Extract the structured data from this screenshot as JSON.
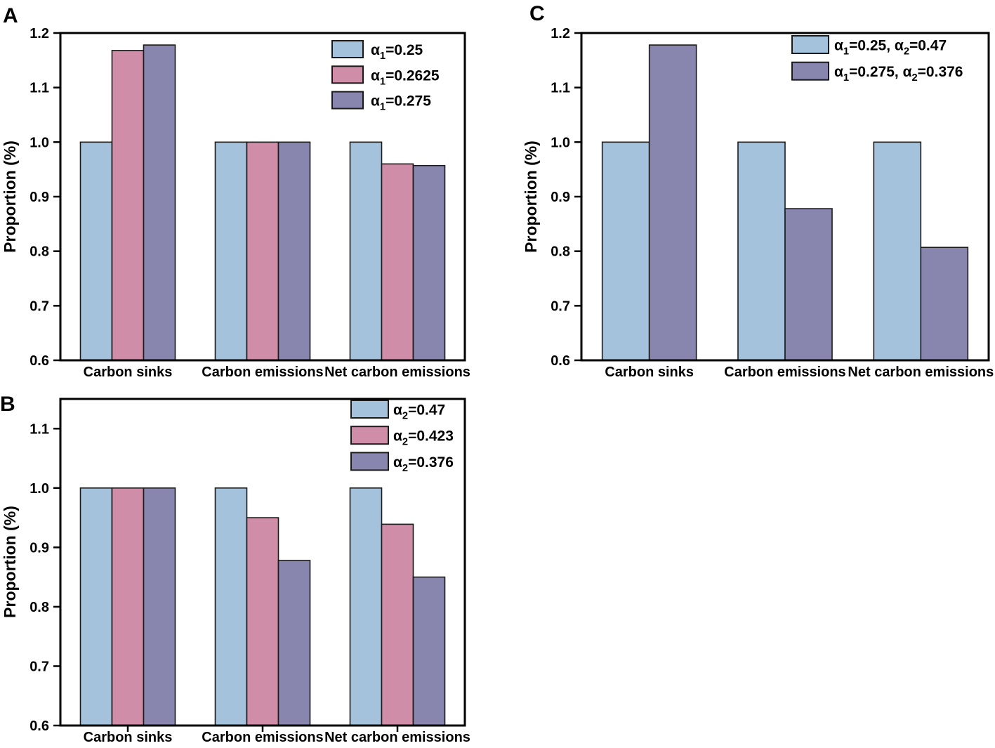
{
  "style": {
    "background": "#ffffff",
    "axis_color": "#000000",
    "bar_stroke": "#1a1a1a",
    "series_colors": {
      "blue": "#a5c2dc",
      "pink": "#cf8da8",
      "purple": "#8886af"
    }
  },
  "chart_data": [
    {
      "panel_label": "A",
      "type": "bar",
      "title": "",
      "xlabel": "",
      "ylabel": "Proportion (%)",
      "categories": [
        "Carbon sinks",
        "Carbon emissions",
        "Net carbon emissions"
      ],
      "ylim": [
        0.6,
        1.2
      ],
      "yticks": [
        0.6,
        0.7,
        0.8,
        0.9,
        1.0,
        1.1,
        1.2
      ],
      "grid": false,
      "legend_position": "top-right",
      "series": [
        {
          "name": "α₁=0.25",
          "color": "#a5c2dc",
          "values": [
            1.0,
            1.0,
            1.0
          ],
          "label_parts": [
            [
              "α",
              0
            ],
            [
              "1",
              1
            ],
            [
              "=0.25",
              0
            ]
          ]
        },
        {
          "name": "α₁=0.2625",
          "color": "#cf8da8",
          "values": [
            1.168,
            1.0,
            0.96
          ],
          "label_parts": [
            [
              "α",
              0
            ],
            [
              "1",
              1
            ],
            [
              "=0.2625",
              0
            ]
          ]
        },
        {
          "name": "α₁=0.275",
          "color": "#8886af",
          "values": [
            1.178,
            1.0,
            0.957
          ],
          "label_parts": [
            [
              "α",
              0
            ],
            [
              "1",
              1
            ],
            [
              "=0.275",
              0
            ]
          ]
        }
      ]
    },
    {
      "panel_label": "B",
      "type": "bar",
      "title": "",
      "xlabel": "",
      "ylabel": "Proportion (%)",
      "categories": [
        "Carbon sinks",
        "Carbon emissions",
        "Net carbon emissions"
      ],
      "ylim": [
        0.6,
        1.15
      ],
      "yticks": [
        0.6,
        0.7,
        0.8,
        0.9,
        1.0,
        1.1
      ],
      "grid": false,
      "legend_position": "top-right",
      "series": [
        {
          "name": "α₂=0.47",
          "color": "#a5c2dc",
          "values": [
            1.0,
            1.0,
            1.0
          ],
          "label_parts": [
            [
              "α",
              0
            ],
            [
              "2",
              1
            ],
            [
              "=0.47",
              0
            ]
          ]
        },
        {
          "name": "α₂=0.423",
          "color": "#cf8da8",
          "values": [
            1.0,
            0.95,
            0.939
          ],
          "label_parts": [
            [
              "α",
              0
            ],
            [
              "2",
              1
            ],
            [
              "=0.423",
              0
            ]
          ]
        },
        {
          "name": "α₂=0.376",
          "color": "#8886af",
          "values": [
            1.0,
            0.878,
            0.85
          ],
          "label_parts": [
            [
              "α",
              0
            ],
            [
              "2",
              1
            ],
            [
              "=0.376",
              0
            ]
          ]
        }
      ]
    },
    {
      "panel_label": "C",
      "type": "bar",
      "title": "",
      "xlabel": "",
      "ylabel": "Proportion (%)",
      "categories": [
        "Carbon sinks",
        "Carbon emissions",
        "Net carbon emissions"
      ],
      "ylim": [
        0.6,
        1.2
      ],
      "yticks": [
        0.6,
        0.7,
        0.8,
        0.9,
        1.0,
        1.1,
        1.2
      ],
      "grid": false,
      "legend_position": "top-right",
      "series": [
        {
          "name": "α₁=0.25, α₂=0.47",
          "color": "#a5c2dc",
          "values": [
            1.0,
            1.0,
            1.0
          ],
          "label_parts": [
            [
              "α",
              0
            ],
            [
              "1",
              1
            ],
            [
              "=0.25, α",
              0
            ],
            [
              "2",
              1
            ],
            [
              "=0.47",
              0
            ]
          ]
        },
        {
          "name": "α₁=0.275, α₂=0.376",
          "color": "#8886af",
          "values": [
            1.178,
            0.878,
            0.807
          ],
          "label_parts": [
            [
              "α",
              0
            ],
            [
              "1",
              1
            ],
            [
              "=0.275, α",
              0
            ],
            [
              "2",
              1
            ],
            [
              "=0.376",
              0
            ]
          ]
        }
      ]
    }
  ]
}
